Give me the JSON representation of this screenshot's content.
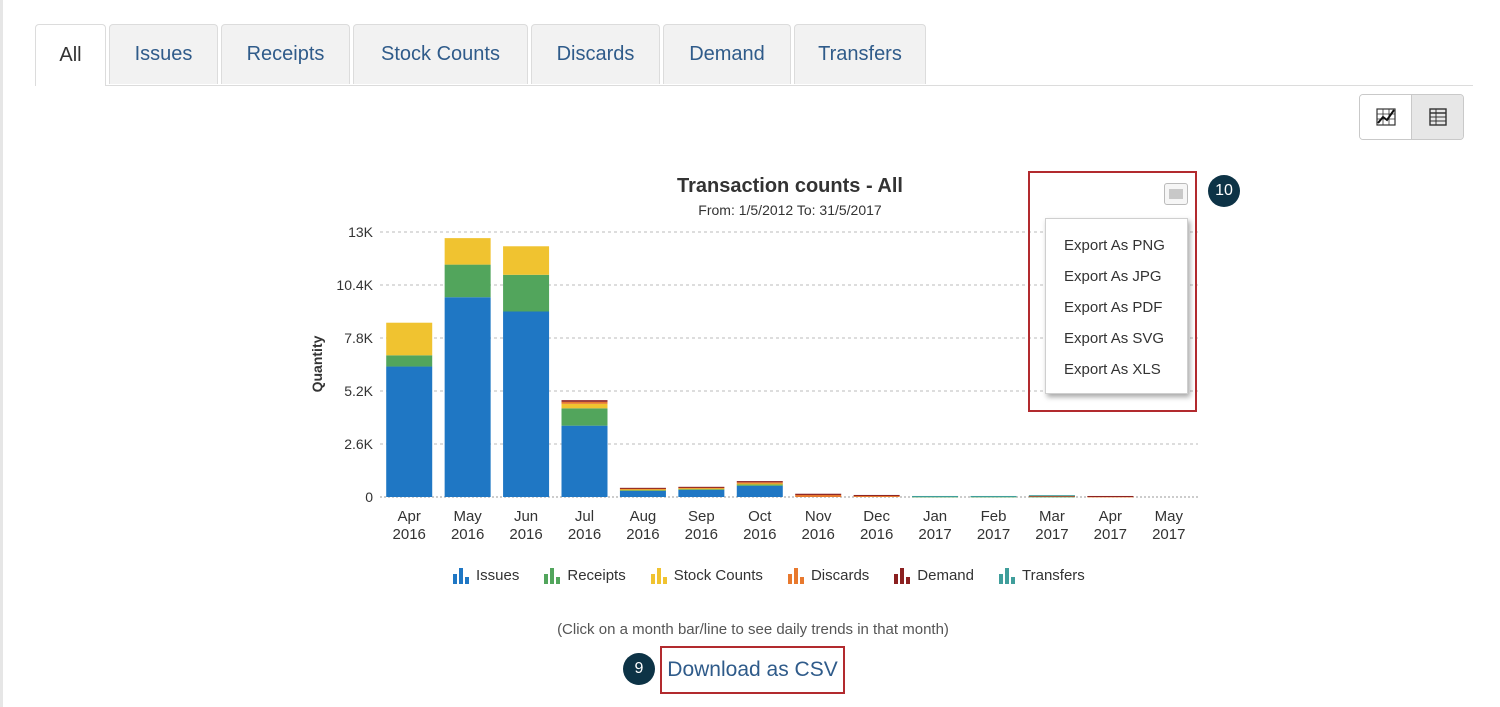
{
  "tabs": [
    "All",
    "Issues",
    "Receipts",
    "Stock Counts",
    "Discards",
    "Demand",
    "Transfers"
  ],
  "active_tab": "All",
  "view_toggle": {
    "chart_icon": "chart-view-icon",
    "table_icon": "table-view-icon"
  },
  "colors": {
    "issues": "#1f77c4",
    "receipts": "#52a55c",
    "stock_counts": "#f0c330",
    "discards": "#e8792e",
    "demand": "#8b2020",
    "transfers": "#3f9e9b",
    "highlight": "#b22a2e",
    "callout": "#0d3346"
  },
  "export_menu": {
    "icon": "export-menu-icon",
    "items": [
      "Export As PNG",
      "Export As JPG",
      "Export As PDF",
      "Export As SVG",
      "Export As XLS"
    ]
  },
  "callouts": {
    "export": "10",
    "csv": "9"
  },
  "hint_text": "(Click on a month bar/line to see daily trends in that month)",
  "csv_link": "Download as CSV",
  "chart_data": {
    "type": "bar",
    "stacked": true,
    "title": "Transaction counts - All",
    "subtitle": "From: 1/5/2012 To: 31/5/2017",
    "ylabel": "Quantity",
    "xlabel": "",
    "ylim": [
      0,
      13000
    ],
    "yticks": [
      "0",
      "2.6K",
      "5.2K",
      "7.8K",
      "10.4K",
      "13K"
    ],
    "grid": true,
    "legend_position": "bottom",
    "categories": [
      [
        "Apr",
        "2016"
      ],
      [
        "May",
        "2016"
      ],
      [
        "Jun",
        "2016"
      ],
      [
        "Jul",
        "2016"
      ],
      [
        "Aug",
        "2016"
      ],
      [
        "Sep",
        "2016"
      ],
      [
        "Oct",
        "2016"
      ],
      [
        "Nov",
        "2016"
      ],
      [
        "Dec",
        "2016"
      ],
      [
        "Jan",
        "2017"
      ],
      [
        "Feb",
        "2017"
      ],
      [
        "Mar",
        "2017"
      ],
      [
        "Apr",
        "2017"
      ],
      [
        "May",
        "2017"
      ]
    ],
    "series": [
      {
        "name": "Issues",
        "values": [
          6400,
          9800,
          9100,
          3500,
          300,
          350,
          550,
          0,
          0,
          0,
          0,
          0,
          0,
          0
        ]
      },
      {
        "name": "Receipts",
        "values": [
          550,
          1600,
          1800,
          850,
          50,
          50,
          80,
          0,
          0,
          30,
          30,
          30,
          0,
          0
        ]
      },
      {
        "name": "Stock Counts",
        "values": [
          1600,
          1300,
          1400,
          220,
          30,
          30,
          30,
          0,
          0,
          0,
          0,
          0,
          0,
          0
        ]
      },
      {
        "name": "Discards",
        "values": [
          0,
          0,
          0,
          100,
          40,
          40,
          60,
          100,
          60,
          0,
          0,
          20,
          30,
          0
        ]
      },
      {
        "name": "Demand",
        "values": [
          0,
          0,
          0,
          80,
          30,
          30,
          60,
          60,
          40,
          0,
          0,
          20,
          20,
          0
        ]
      },
      {
        "name": "Transfers",
        "values": [
          0,
          0,
          0,
          0,
          0,
          0,
          0,
          0,
          0,
          20,
          20,
          20,
          0,
          0
        ]
      }
    ]
  }
}
